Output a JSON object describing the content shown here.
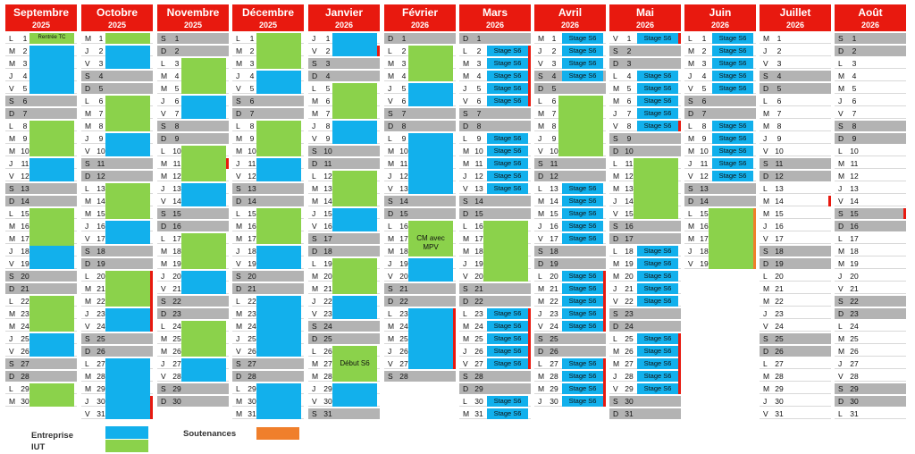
{
  "colors": {
    "header": "#e8190f",
    "entreprise": "#12b0ec",
    "iut": "#8bd24b",
    "soutenances": "#f07f2b",
    "weekend": "#b3b3b3",
    "marker": "#e8190f"
  },
  "months": [
    {
      "name": "Septembre",
      "year": "2025",
      "first_letter_index": 0,
      "days": 30,
      "blocks": [
        {
          "type": "iut",
          "from": 1,
          "to": 1,
          "label": "Rentrée TC"
        },
        {
          "type": "ent",
          "from": 2,
          "to": 5
        },
        {
          "type": "iut",
          "from": 8,
          "to": 10
        },
        {
          "type": "ent",
          "from": 11,
          "to": 12
        },
        {
          "type": "iut",
          "from": 15,
          "to": 18
        },
        {
          "type": "ent",
          "from": 18,
          "to": 19
        },
        {
          "type": "iut",
          "from": 22,
          "to": 24
        },
        {
          "type": "ent",
          "from": 25,
          "to": 26
        },
        {
          "type": "iut",
          "from": 29,
          "to": 30
        }
      ],
      "stages": [],
      "markers": []
    },
    {
      "name": "Octobre",
      "year": "2025",
      "first_letter_index": 2,
      "days": 31,
      "blocks": [
        {
          "type": "iut",
          "from": 1,
          "to": 1
        },
        {
          "type": "ent",
          "from": 2,
          "to": 3
        },
        {
          "type": "iut",
          "from": 6,
          "to": 8
        },
        {
          "type": "ent",
          "from": 9,
          "to": 10
        },
        {
          "type": "iut",
          "from": 13,
          "to": 15
        },
        {
          "type": "ent",
          "from": 16,
          "to": 17
        },
        {
          "type": "iut",
          "from": 20,
          "to": 22
        },
        {
          "type": "ent",
          "from": 23,
          "to": 24
        },
        {
          "type": "ent",
          "from": 27,
          "to": 31
        }
      ],
      "stages": [],
      "markers": [
        {
          "from": 20,
          "to": 24,
          "kind": "red"
        },
        {
          "from": 30,
          "to": 31,
          "kind": "red"
        }
      ]
    },
    {
      "name": "Novembre",
      "year": "2025",
      "first_letter_index": 5,
      "days": 30,
      "blocks": [
        {
          "type": "iut",
          "from": 3,
          "to": 5
        },
        {
          "type": "ent",
          "from": 6,
          "to": 7
        },
        {
          "type": "iut",
          "from": 10,
          "to": 12
        },
        {
          "type": "ent",
          "from": 13,
          "to": 14
        },
        {
          "type": "iut",
          "from": 17,
          "to": 19
        },
        {
          "type": "ent",
          "from": 20,
          "to": 21
        },
        {
          "type": "iut",
          "from": 24,
          "to": 26
        },
        {
          "type": "ent",
          "from": 27,
          "to": 28
        }
      ],
      "stages": [],
      "markers": [
        {
          "from": 11,
          "to": 11,
          "kind": "red"
        }
      ]
    },
    {
      "name": "Décembre",
      "year": "2025",
      "first_letter_index": 0,
      "days": 31,
      "blocks": [
        {
          "type": "iut",
          "from": 1,
          "to": 3
        },
        {
          "type": "ent",
          "from": 4,
          "to": 5
        },
        {
          "type": "iut",
          "from": 8,
          "to": 10
        },
        {
          "type": "ent",
          "from": 11,
          "to": 12
        },
        {
          "type": "iut",
          "from": 15,
          "to": 17
        },
        {
          "type": "ent",
          "from": 18,
          "to": 19
        },
        {
          "type": "ent",
          "from": 22,
          "to": 26
        },
        {
          "type": "ent",
          "from": 29,
          "to": 31
        }
      ],
      "stages": [],
      "markers": []
    },
    {
      "name": "Janvier",
      "year": "2026",
      "first_letter_index": 3,
      "days": 31,
      "blocks": [
        {
          "type": "ent",
          "from": 1,
          "to": 2
        },
        {
          "type": "iut",
          "from": 5,
          "to": 7
        },
        {
          "type": "ent",
          "from": 8,
          "to": 9
        },
        {
          "type": "iut",
          "from": 12,
          "to": 14
        },
        {
          "type": "ent",
          "from": 15,
          "to": 16
        },
        {
          "type": "iut",
          "from": 19,
          "to": 21
        },
        {
          "type": "ent",
          "from": 22,
          "to": 23
        },
        {
          "type": "iut",
          "from": 26,
          "to": 28,
          "label": "Début S6"
        },
        {
          "type": "ent",
          "from": 29,
          "to": 30
        }
      ],
      "stages": [],
      "markers": [
        {
          "from": 2,
          "to": 2,
          "kind": "red"
        }
      ]
    },
    {
      "name": "Février",
      "year": "2026",
      "first_letter_index": 6,
      "days": 28,
      "blocks": [
        {
          "type": "iut",
          "from": 2,
          "to": 4
        },
        {
          "type": "ent",
          "from": 5,
          "to": 6
        },
        {
          "type": "ent",
          "from": 9,
          "to": 13
        },
        {
          "type": "iut",
          "from": 16,
          "to": 18,
          "label": "CM avec MPV"
        },
        {
          "type": "ent",
          "from": 19,
          "to": 20
        },
        {
          "type": "ent",
          "from": 23,
          "to": 27
        }
      ],
      "stages": [],
      "markers": [
        {
          "from": 23,
          "to": 27,
          "kind": "red"
        }
      ]
    },
    {
      "name": "Mars",
      "year": "2026",
      "first_letter_index": 6,
      "days": 31,
      "blocks": [
        {
          "type": "iut",
          "from": 16,
          "to": 20
        }
      ],
      "stages": [
        {
          "from": 2,
          "to": 6,
          "label": "Stage S6"
        },
        {
          "from": 9,
          "to": 13,
          "label": "Stage S6"
        },
        {
          "from": 23,
          "to": 27,
          "label": "Stage S6"
        },
        {
          "from": 30,
          "to": 31,
          "label": "Stage S6"
        }
      ],
      "markers": [
        {
          "from": 2,
          "to": 6,
          "kind": "red"
        },
        {
          "from": 23,
          "to": 27,
          "kind": "red"
        }
      ]
    },
    {
      "name": "Avril",
      "year": "2026",
      "first_letter_index": 2,
      "days": 30,
      "blocks": [
        {
          "type": "iut",
          "from": 6,
          "to": 10
        }
      ],
      "stages": [
        {
          "from": 1,
          "to": 4,
          "label": "Stage S6"
        },
        {
          "from": 13,
          "to": 17,
          "label": "Stage S6"
        },
        {
          "from": 20,
          "to": 24,
          "label": "Stage S6"
        },
        {
          "from": 27,
          "to": 30,
          "label": "Stage S6"
        }
      ],
      "markers": [
        {
          "from": 20,
          "to": 24,
          "kind": "red"
        },
        {
          "from": 27,
          "to": 30,
          "kind": "red"
        }
      ]
    },
    {
      "name": "Mai",
      "year": "2026",
      "first_letter_index": 4,
      "days": 31,
      "blocks": [
        {
          "type": "iut",
          "from": 11,
          "to": 15
        }
      ],
      "stages": [
        {
          "from": 1,
          "to": 1,
          "label": "Stage S6"
        },
        {
          "from": 4,
          "to": 8,
          "label": "Stage S6"
        },
        {
          "from": 18,
          "to": 22,
          "label": "Stage S6"
        },
        {
          "from": 25,
          "to": 29,
          "label": "Stage S6"
        }
      ],
      "markers": [
        {
          "from": 1,
          "to": 1,
          "kind": "red"
        },
        {
          "from": 8,
          "to": 8,
          "kind": "red"
        },
        {
          "from": 25,
          "to": 29,
          "kind": "red"
        }
      ]
    },
    {
      "name": "Juin",
      "year": "2026",
      "first_letter_index": 0,
      "days": 19,
      "blocks": [
        {
          "type": "iut",
          "from": 15,
          "to": 19
        }
      ],
      "stages": [
        {
          "from": 1,
          "to": 5,
          "label": "Stage S6"
        },
        {
          "from": 8,
          "to": 12,
          "label": "Stage S6"
        }
      ],
      "markers": [
        {
          "from": 15,
          "to": 19,
          "kind": "orange"
        }
      ]
    },
    {
      "name": "Juillet",
      "year": "2026",
      "first_letter_index": 2,
      "days": 31,
      "blocks": [],
      "stages": [],
      "markers": [
        {
          "from": 14,
          "to": 14,
          "kind": "red"
        }
      ]
    },
    {
      "name": "Août",
      "year": "2026",
      "first_letter_index": 5,
      "days": 31,
      "blocks": [],
      "stages": [],
      "markers": [
        {
          "from": 15,
          "to": 15,
          "kind": "red"
        }
      ]
    }
  ],
  "day_letters": [
    "L",
    "M",
    "M",
    "J",
    "V",
    "S",
    "D"
  ],
  "legend": {
    "entreprise": "Entreprise",
    "iut": "IUT",
    "soutenances": "Soutenances"
  }
}
